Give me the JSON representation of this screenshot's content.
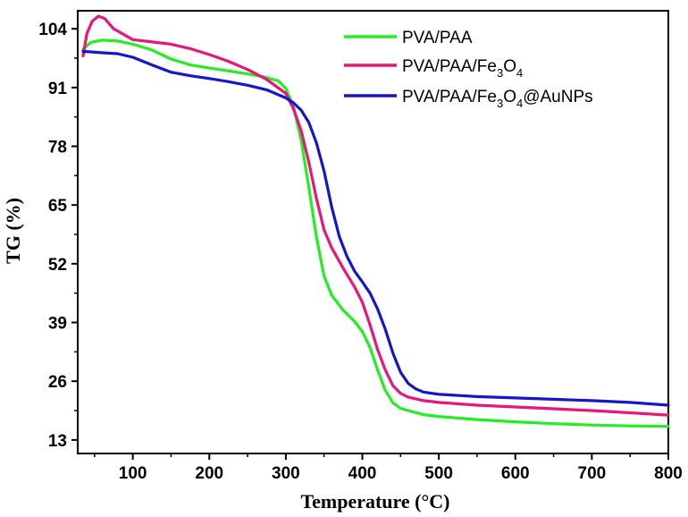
{
  "chart_data": {
    "type": "line",
    "xlabel": "Temperature (°C)",
    "ylabel": "TG (%)",
    "xlim": [
      28,
      800
    ],
    "ylim": [
      10,
      108
    ],
    "xticks": [
      100,
      200,
      300,
      400,
      500,
      600,
      700,
      800
    ],
    "yticks": [
      13,
      26,
      39,
      52,
      65,
      78,
      91,
      104
    ],
    "legend_position": "top-right",
    "series": [
      {
        "name": "PVA/PAA",
        "color": "#22ee22",
        "x": [
          35,
          45,
          60,
          80,
          100,
          125,
          150,
          175,
          200,
          225,
          250,
          270,
          290,
          300,
          310,
          320,
          330,
          340,
          350,
          360,
          375,
          390,
          400,
          410,
          420,
          430,
          440,
          450,
          460,
          480,
          500,
          550,
          600,
          650,
          700,
          750,
          800
        ],
        "y": [
          99.5,
          101,
          101.5,
          101.3,
          100.6,
          99.3,
          97.3,
          96,
          95.3,
          94.7,
          94,
          93.4,
          92.5,
          90.8,
          86.7,
          79.5,
          69,
          58,
          49.3,
          45,
          41.7,
          39.2,
          37,
          33.5,
          28.5,
          24,
          21.2,
          20,
          19.5,
          18.6,
          18.2,
          17.5,
          17,
          16.6,
          16.3,
          16.1,
          16
        ]
      },
      {
        "name": "PVA/PAA/Fe3O4",
        "color": "#e8157a",
        "x": [
          35,
          40,
          47,
          55,
          63,
          75,
          100,
          125,
          150,
          175,
          200,
          225,
          250,
          275,
          300,
          310,
          320,
          330,
          340,
          350,
          360,
          375,
          390,
          400,
          410,
          420,
          430,
          440,
          450,
          460,
          480,
          500,
          550,
          600,
          650,
          700,
          750,
          800
        ],
        "y": [
          98,
          103,
          105.7,
          106.8,
          106.3,
          104,
          101.6,
          101.1,
          100.6,
          99.6,
          98.3,
          96.8,
          95,
          92.8,
          89.7,
          86.3,
          81.5,
          74.5,
          66.5,
          59.5,
          55.5,
          51,
          46.8,
          43.5,
          38.5,
          33,
          28.5,
          25,
          23.3,
          22.5,
          21.7,
          21.3,
          20.7,
          20.3,
          19.9,
          19.5,
          19,
          18.5
        ]
      },
      {
        "name": "PVA/PAA/Fe3O4@AuNPs",
        "color": "#1515cc",
        "x": [
          35,
          45,
          60,
          80,
          100,
          125,
          150,
          175,
          200,
          225,
          250,
          275,
          300,
          310,
          320,
          330,
          340,
          350,
          360,
          370,
          380,
          390,
          400,
          410,
          420,
          430,
          440,
          450,
          460,
          470,
          480,
          500,
          550,
          600,
          650,
          700,
          750,
          800
        ],
        "y": [
          99,
          98.9,
          98.7,
          98.5,
          97.7,
          96,
          94.4,
          93.6,
          93,
          92.3,
          91.5,
          90.5,
          88.7,
          87.6,
          86,
          83.3,
          78.8,
          72.5,
          64.5,
          58,
          53.6,
          50.3,
          48,
          45.5,
          42,
          37.5,
          32.2,
          28,
          25.5,
          24.3,
          23.6,
          23.1,
          22.6,
          22.3,
          22,
          21.7,
          21.3,
          20.7
        ]
      }
    ]
  },
  "legend": [
    {
      "base": "PVA/PAA/Fe",
      "sub1": "3",
      "mid": "O",
      "sub2": "4",
      "tail": ""
    }
  ],
  "legend_items": [
    {
      "plain": "PVA/PAA"
    },
    {
      "base": "PVA/PAA/Fe",
      "sub1": "3",
      "mid": "O",
      "sub2": "4",
      "tail": ""
    },
    {
      "base": "PVA/PAA/Fe",
      "sub1": "3",
      "mid": "O",
      "sub2": "4",
      "tail": "@AuNPs"
    }
  ]
}
